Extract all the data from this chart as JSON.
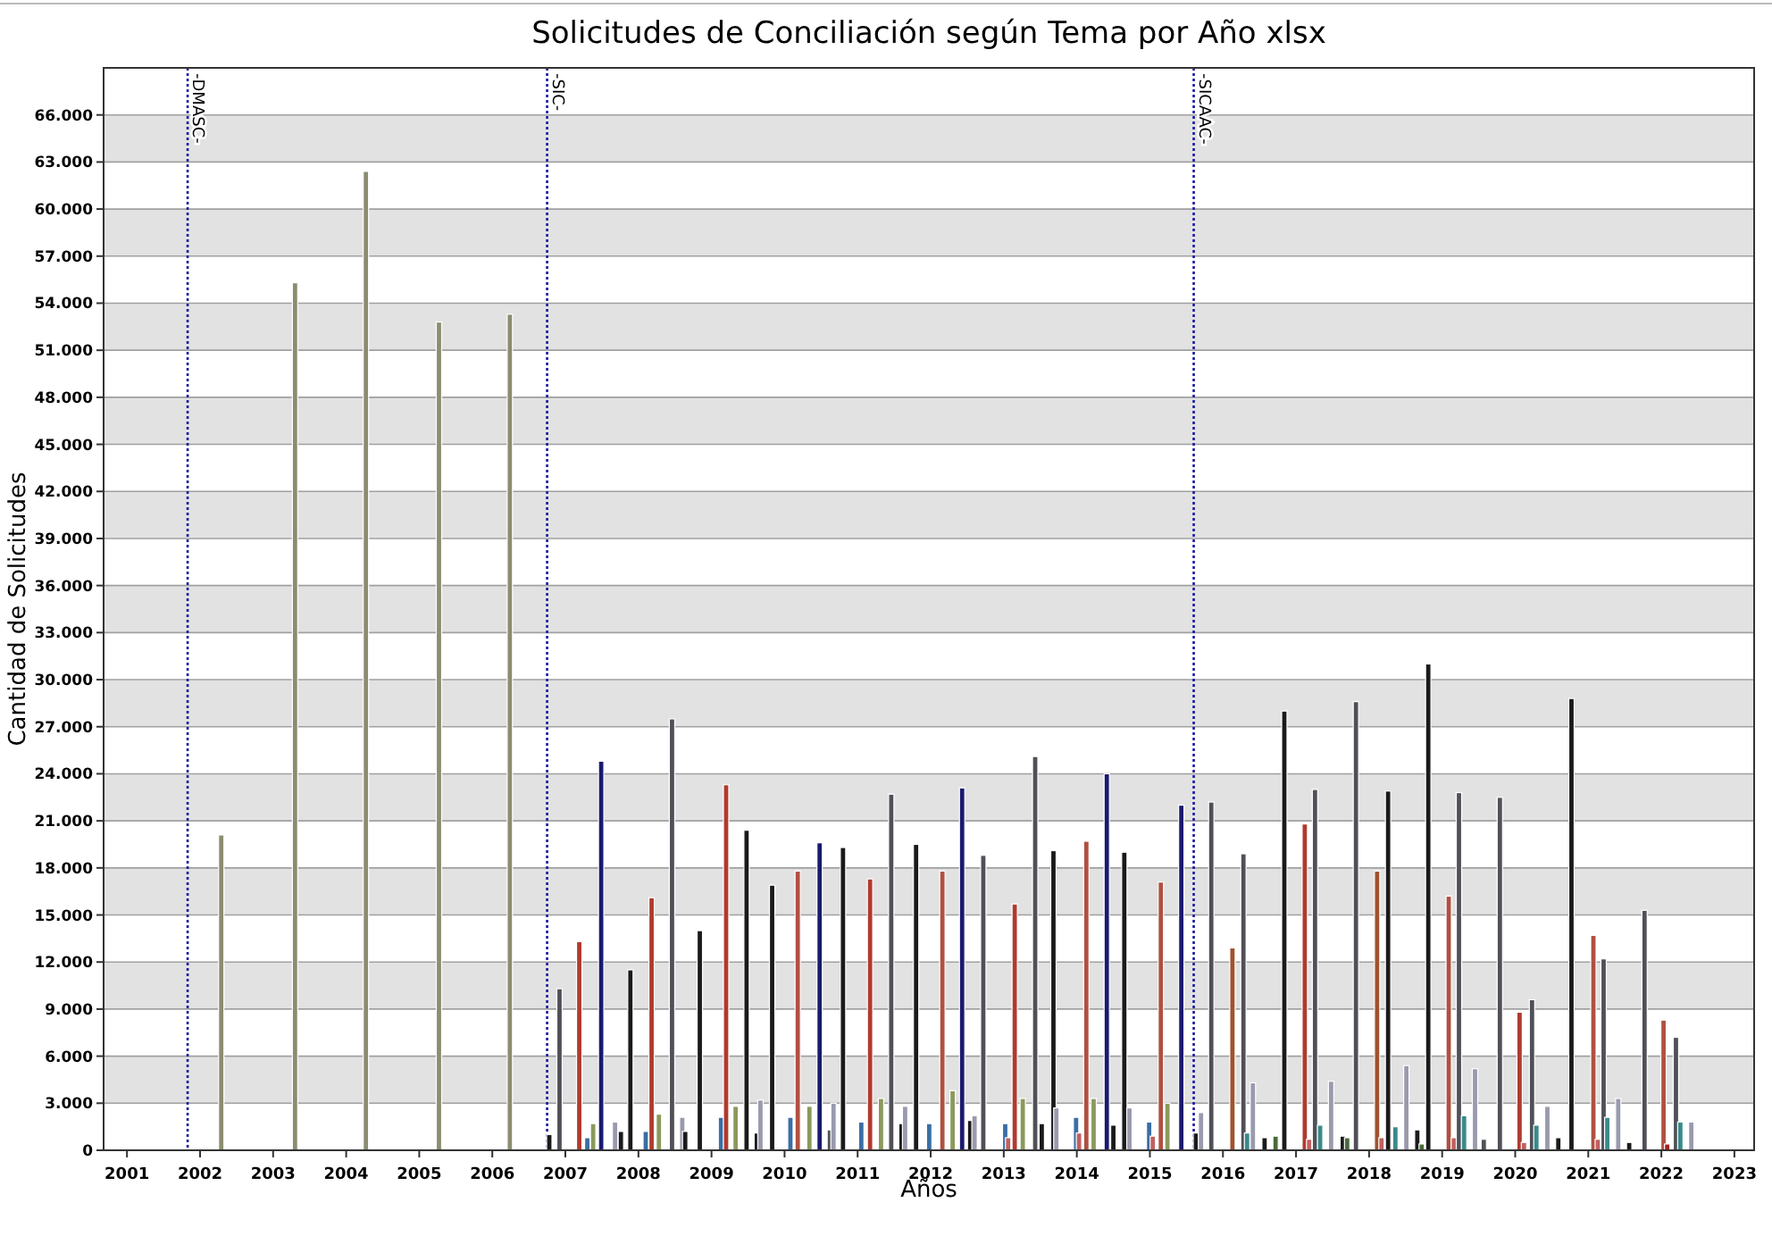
{
  "chart_data": {
    "type": "bar",
    "title": "Solicitudes de Conciliación según Tema por Año xlsx",
    "xlabel": "Años",
    "ylabel": "Cantidad de Solicitudes",
    "xlim": [
      2000.68,
      2023.27
    ],
    "xticks": [
      2001,
      2002,
      2003,
      2004,
      2005,
      2006,
      2007,
      2008,
      2009,
      2010,
      2011,
      2012,
      2013,
      2014,
      2015,
      2016,
      2017,
      2018,
      2019,
      2020,
      2021,
      2022,
      2023
    ],
    "ylim": [
      0,
      69000
    ],
    "yticks": [
      0,
      {
        "value": 3000,
        "label": "3.000"
      },
      {
        "value": 6000,
        "label": "6.000"
      },
      {
        "value": 9000,
        "label": "9.000"
      },
      {
        "value": 12000,
        "label": "12.000"
      },
      {
        "value": 15000,
        "label": "15.000"
      },
      {
        "value": 18000,
        "label": "18.000"
      },
      {
        "value": 21000,
        "label": "21.000"
      },
      {
        "value": 24000,
        "label": "24.000"
      },
      {
        "value": 27000,
        "label": "27.000"
      },
      {
        "value": 30000,
        "label": "30.000"
      },
      {
        "value": 33000,
        "label": "33.000"
      },
      {
        "value": 36000,
        "label": "36.000"
      },
      {
        "value": 39000,
        "label": "39.000"
      },
      {
        "value": 42000,
        "label": "42.000"
      },
      {
        "value": 45000,
        "label": "45.000"
      },
      {
        "value": 48000,
        "label": "48.000"
      },
      {
        "value": 51000,
        "label": "51.000"
      },
      {
        "value": 54000,
        "label": "54.000"
      },
      {
        "value": 57000,
        "label": "57.000"
      },
      {
        "value": 60000,
        "label": "60.000"
      },
      {
        "value": 63000,
        "label": "63.000"
      },
      {
        "value": 66000,
        "label": "66.000"
      }
    ],
    "grid": "y",
    "ref_lines": [
      {
        "axis": "x",
        "value": 2001.83,
        "label": "-DMASC-",
        "color": "#1a1aa0",
        "line_style": "dotted"
      },
      {
        "axis": "x",
        "value": 2006.75,
        "label": "-SIC-",
        "color": "#1a1aa0",
        "line_style": "dotted"
      },
      {
        "axis": "x",
        "value": 2015.6,
        "label": "-SICAAC-",
        "color": "#1a1aa0",
        "line_style": "dotted"
      }
    ],
    "x": [
      2002.29,
      2003.3,
      2004.27,
      2005.27,
      2006.24,
      2006.78,
      2006.92,
      2007.19,
      2007.3,
      2007.38,
      2007.49,
      2007.68,
      2007.76,
      2007.89,
      2008.1,
      2008.18,
      2008.28,
      2008.46,
      2008.6,
      2008.64,
      2008.84,
      2009.13,
      2009.2,
      2009.33,
      2009.48,
      2009.62,
      2009.67,
      2009.83,
      2010.08,
      2010.18,
      2010.34,
      2010.48,
      2010.62,
      2010.67,
      2010.8,
      2011.05,
      2011.17,
      2011.32,
      2011.46,
      2011.6,
      2011.65,
      2011.8,
      2011.98,
      2012.16,
      2012.3,
      2012.43,
      2012.54,
      2012.6,
      2012.72,
      2013.02,
      2013.06,
      2013.15,
      2013.26,
      2013.43,
      2013.52,
      2013.68,
      2013.72,
      2013.99,
      2014.03,
      2014.13,
      2014.23,
      2014.41,
      2014.5,
      2014.65,
      2014.72,
      2014.99,
      2015.04,
      2015.15,
      2015.24,
      2015.43,
      2015.63,
      2015.7,
      2015.84,
      2016.13,
      2016.28,
      2016.33,
      2016.41,
      2016.57,
      2016.72,
      2016.84,
      2017.12,
      2017.18,
      2017.26,
      2017.33,
      2017.48,
      2017.64,
      2017.7,
      2017.82,
      2018.11,
      2018.17,
      2018.26,
      2018.36,
      2018.51,
      2018.66,
      2018.72,
      2018.81,
      2019.09,
      2019.16,
      2019.23,
      2019.3,
      2019.45,
      2019.57,
      2019.79,
      2020.06,
      2020.12,
      2020.23,
      2020.29,
      2020.44,
      2020.59,
      2020.77,
      2021.07,
      2021.13,
      2021.21,
      2021.26,
      2021.41,
      2021.56,
      2021.77,
      2022.03,
      2022.08,
      2022.2,
      2022.26,
      2022.41
    ],
    "values": [
      20100,
      55300,
      62400,
      52800,
      53300,
      1000,
      10300,
      13300,
      800,
      1700,
      24800,
      1800,
      1200,
      11500,
      1200,
      16100,
      2300,
      27500,
      2100,
      1200,
      14000,
      2100,
      23300,
      2800,
      20400,
      1100,
      3200,
      16900,
      2100,
      17800,
      2800,
      19600,
      1300,
      3000,
      19300,
      1800,
      17300,
      3300,
      22700,
      1700,
      2800,
      19500,
      1700,
      17800,
      3800,
      23100,
      1900,
      2200,
      18800,
      1700,
      800,
      15700,
      3300,
      25100,
      1700,
      19100,
      2700,
      2100,
      1100,
      19700,
      3300,
      24000,
      1600,
      19000,
      2700,
      1800,
      900,
      17100,
      3000,
      22000,
      1100,
      2400,
      22200,
      12900,
      18900,
      1100,
      4300,
      800,
      900,
      28000,
      20800,
      700,
      23000,
      1600,
      4400,
      900,
      800,
      28600,
      17800,
      800,
      22900,
      1500,
      5400,
      1300,
      400,
      31000,
      16200,
      800,
      22800,
      2200,
      5200,
      700,
      22500,
      8800,
      500,
      9600,
      1600,
      2800,
      800,
      28800,
      13700,
      700,
      12200,
      2100,
      3300,
      500,
      15300,
      8300,
      400,
      7200,
      1800,
      1800
    ],
    "colors": [
      "#8c8c70",
      "#8c8c70",
      "#8c8c70",
      "#8c8c70",
      "#8c8c70",
      "#1a1a1a",
      "#505058",
      "#b03a2e",
      "#3a6ea5",
      "#8a9a5b",
      "#1a1a6e",
      "#9a9aae",
      "#1a1a1a",
      "#1a1a1a",
      "#3a6ea5",
      "#b03a2e",
      "#8a9a5b",
      "#505058",
      "#9a9aae",
      "#1a1a1a",
      "#1a1a1a",
      "#3a6ea5",
      "#b03a2e",
      "#8a9a5b",
      "#1a1a1a",
      "#1a1a1a",
      "#9a9aae",
      "#1a1a1a",
      "#3a6ea5",
      "#b05040",
      "#8a9a5b",
      "#1a1a6e",
      "#505058",
      "#9a9aae",
      "#1a1a1a",
      "#3a6ea5",
      "#b03a2e",
      "#8a9a5b",
      "#505058",
      "#1a1a1a",
      "#9a9aae",
      "#1a1a1a",
      "#3a6ea5",
      "#b05040",
      "#8a9a5b",
      "#1a1a6e",
      "#1a1a1a",
      "#9a9aae",
      "#505058",
      "#3a6ea5",
      "#c06060",
      "#b03a2e",
      "#8a9a5b",
      "#505058",
      "#1a1a1a",
      "#1a1a1a",
      "#9a9aae",
      "#3a6ea5",
      "#c06060",
      "#b05040",
      "#8a9a5b",
      "#1a1a6e",
      "#1a1a1a",
      "#1a1a1a",
      "#9a9aae",
      "#3a6ea5",
      "#c06060",
      "#b05040",
      "#8a9a5b",
      "#1a1a6e",
      "#1a1a1a",
      "#9a9aae",
      "#505058",
      "#a0522d",
      "#505058",
      "#3a8a8a",
      "#9a9aae",
      "#1a1a1a",
      "#4a6a3a",
      "#1a1a1a",
      "#b03a2e",
      "#c06060",
      "#505058",
      "#3a8a8a",
      "#9a9aae",
      "#1a1a1a",
      "#4a6a3a",
      "#505058",
      "#a0522d",
      "#c06060",
      "#1a1a1a",
      "#3a8a8a",
      "#9a9aae",
      "#1a1a1a",
      "#4a6a3a",
      "#1a1a1a",
      "#b05040",
      "#c06060",
      "#505058",
      "#3a8a8a",
      "#9a9aae",
      "#505058",
      "#505058",
      "#b03a2e",
      "#c06060",
      "#505058",
      "#3a8a8a",
      "#9a9aae",
      "#1a1a1a",
      "#1a1a1a",
      "#b05040",
      "#c06060",
      "#505058",
      "#3a8a8a",
      "#9a9aae",
      "#1a1a1a",
      "#505058",
      "#b05040",
      "#a02020",
      "#505058",
      "#3a8a8a",
      "#9a9aae"
    ]
  }
}
